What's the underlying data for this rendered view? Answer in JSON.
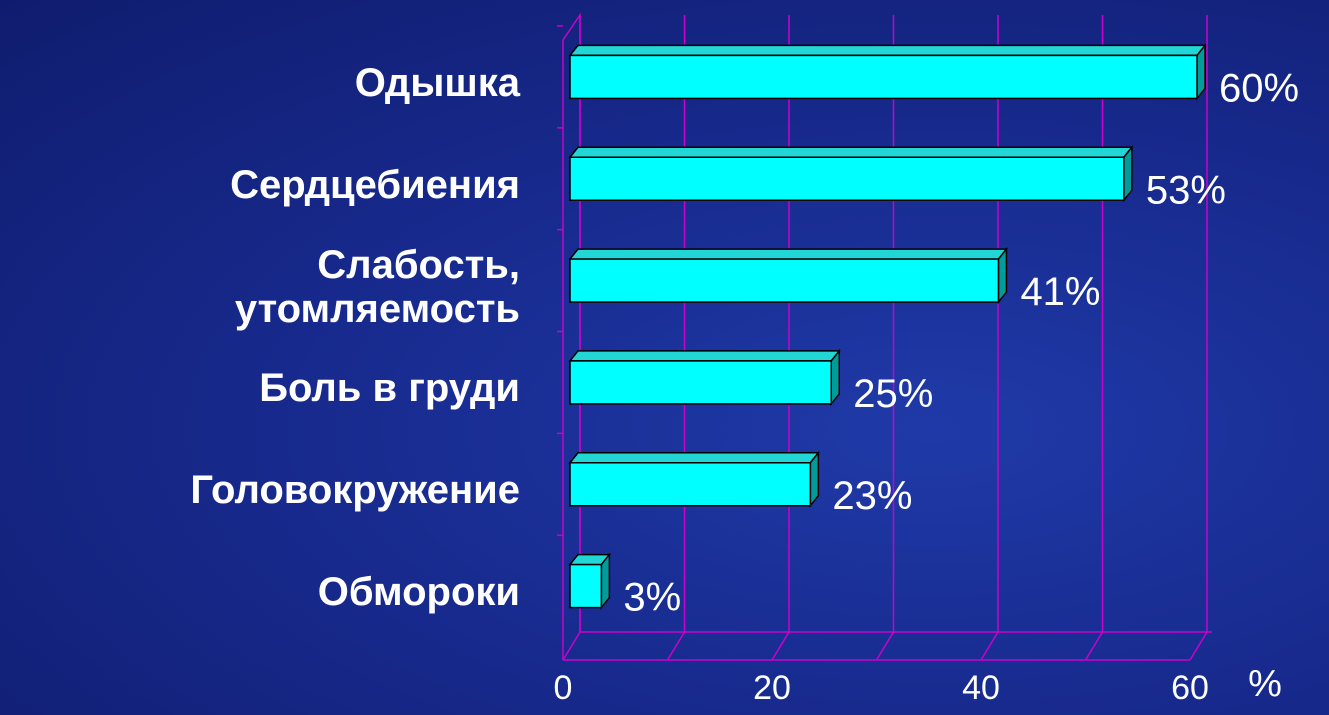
{
  "chart_data": {
    "type": "bar3d_horizontal",
    "categories": [
      "Одышка",
      "Сердцебиения",
      "Слабость,\nутомляемость",
      "Боль в груди",
      "Головокружение",
      "Обмороки"
    ],
    "values": [
      60,
      53,
      41,
      25,
      23,
      3
    ],
    "value_labels": [
      "60%",
      "53%",
      "41%",
      "25%",
      "23%",
      "3%"
    ],
    "color": "#00ffff",
    "xlim": [
      0,
      60
    ],
    "xticks": [
      0,
      20,
      40,
      60
    ],
    "minor_xticks": [
      10,
      30,
      50
    ],
    "x_label": "%",
    "grid": true,
    "grid_color": "#cc00cc"
  }
}
